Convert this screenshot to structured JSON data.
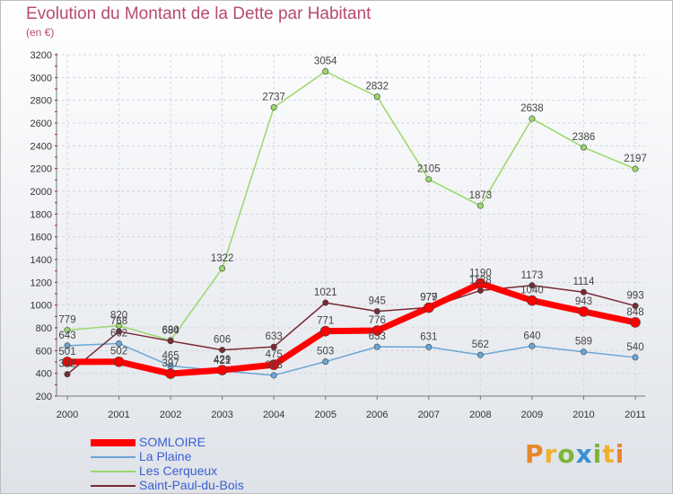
{
  "header": {
    "title": "Evolution du Montant de la Dette par Habitant",
    "subtitle": "(en €)"
  },
  "logo": {
    "text": "Proxiti",
    "colors": [
      "#e8862a",
      "#f0b12c",
      "#7db43a",
      "#3a90d6",
      "#7db43a",
      "#f0b12c",
      "#e8862a"
    ]
  },
  "chart_data": {
    "type": "line",
    "x": [
      "2000",
      "2001",
      "2002",
      "2003",
      "2004",
      "2005",
      "2006",
      "2007",
      "2008",
      "2009",
      "2010",
      "2011"
    ],
    "ylim": [
      200,
      3200
    ],
    "yticks": [
      200,
      400,
      600,
      800,
      1000,
      1200,
      1400,
      1600,
      1800,
      2000,
      2200,
      2400,
      2600,
      2800,
      3000,
      3200
    ],
    "grid": true,
    "legend_position": "bottom-left",
    "series": [
      {
        "name": "SOMLOIRE",
        "color": "#ff0000",
        "width": 7,
        "values": [
          501,
          502,
          397,
          429,
          475,
          771,
          776,
          977,
          1190,
          1040,
          943,
          848
        ]
      },
      {
        "name": "La Plaine",
        "color": "#6aa6d6",
        "width": 1.5,
        "values": [
          643,
          662,
          465,
          421,
          383,
          503,
          633,
          631,
          562,
          640,
          589,
          540
        ]
      },
      {
        "name": "Les Cerqueux",
        "color": "#9ad86a",
        "width": 1.5,
        "values": [
          779,
          820,
          690,
          1322,
          2737,
          3054,
          2832,
          2105,
          1873,
          2638,
          2386,
          2197
        ]
      },
      {
        "name": "Saint-Paul-du-Bois",
        "color": "#7a2a33",
        "width": 1.5,
        "values": [
          392,
          768,
          684,
          606,
          633,
          1021,
          945,
          979,
          1128,
          1173,
          1114,
          993
        ]
      }
    ]
  }
}
